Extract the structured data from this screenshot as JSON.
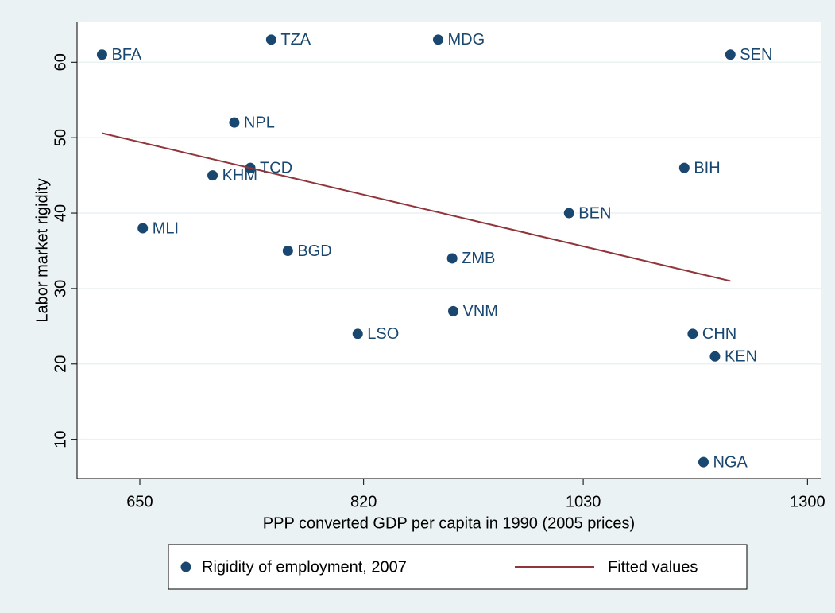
{
  "chart_data": {
    "type": "scatter",
    "x_label": "PPP converted GDP per capita in 1990 (2005 prices)",
    "y_label": "Labor market rigidity",
    "xscale": "log",
    "xlim": [
      609,
      1318
    ],
    "ylim": [
      4.8,
      65.3
    ],
    "xticks": [
      650,
      820,
      1030,
      1300
    ],
    "yticks": [
      10,
      20,
      30,
      40,
      50,
      60
    ],
    "grid": true,
    "legend_position": "bottom",
    "series": [
      {
        "name": "Rigidity of employment, 2007",
        "type": "scatter",
        "color": "#1a476f",
        "labels": [
          "BFA",
          "TZA",
          "MDG",
          "SEN",
          "NPL",
          "TCD",
          "KHM",
          "BIH",
          "BEN",
          "MLI",
          "BGD",
          "ZMB",
          "VNM",
          "LSO",
          "CHN",
          "KEN",
          "NGA"
        ],
        "x": [
          625,
          745,
          886,
          1200,
          717,
          729,
          701,
          1144,
          1015,
          652,
          758,
          899,
          900,
          815,
          1154,
          1181,
          1167
        ],
        "values": [
          61,
          63,
          63,
          61,
          52,
          46,
          45,
          46,
          40,
          38,
          35,
          34,
          27,
          24,
          24,
          21,
          7
        ]
      },
      {
        "name": "Fitted values",
        "type": "line",
        "color": "#90353b",
        "x": [
          625,
          1200
        ],
        "values": [
          50.6,
          31.0
        ]
      }
    ]
  }
}
